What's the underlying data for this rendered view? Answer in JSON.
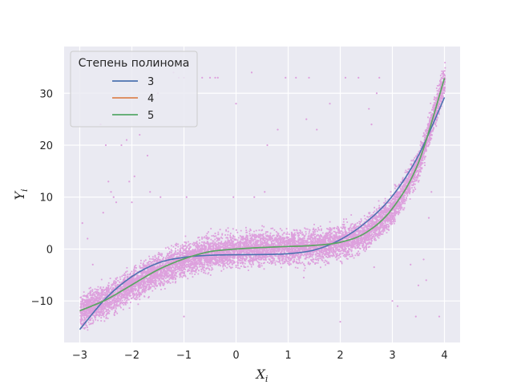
{
  "chart_data": {
    "type": "scatter",
    "title": "",
    "xlabel": "X",
    "xlabel_sub": "i",
    "ylabel": "Y",
    "ylabel_sub": "i",
    "xlim": [
      -3.3,
      4.3
    ],
    "ylim": [
      -18,
      39
    ],
    "xticks": [
      -3,
      -2,
      -1,
      0,
      1,
      2,
      3,
      4
    ],
    "yticks": [
      -10,
      0,
      10,
      20,
      30
    ],
    "grid": true,
    "background": "#eaeaf2",
    "scatter": {
      "color": "#dda0dd",
      "band_center_fit_degree": 5,
      "outliers": [
        [
          -2.95,
          5
        ],
        [
          -2.85,
          2
        ],
        [
          -2.75,
          -3
        ],
        [
          -2.6,
          24
        ],
        [
          -2.55,
          7
        ],
        [
          -2.5,
          20
        ],
        [
          -2.45,
          13
        ],
        [
          -2.4,
          11
        ],
        [
          -2.35,
          10
        ],
        [
          -2.3,
          9
        ],
        [
          -2.2,
          20
        ],
        [
          -2.1,
          21
        ],
        [
          -2.05,
          13
        ],
        [
          -2.0,
          9
        ],
        [
          -1.95,
          14
        ],
        [
          -1.85,
          22
        ],
        [
          -1.7,
          18
        ],
        [
          -1.65,
          11
        ],
        [
          -1.5,
          30
        ],
        [
          -1.45,
          10
        ],
        [
          -1.2,
          34
        ],
        [
          -1.1,
          33
        ],
        [
          -1.0,
          33
        ],
        [
          -0.95,
          10
        ],
        [
          -0.65,
          33
        ],
        [
          -0.5,
          33
        ],
        [
          -0.4,
          33
        ],
        [
          -0.35,
          33
        ],
        [
          -0.05,
          10
        ],
        [
          0.0,
          28
        ],
        [
          0.3,
          34
        ],
        [
          0.35,
          10
        ],
        [
          0.55,
          11
        ],
        [
          0.6,
          20
        ],
        [
          0.8,
          23
        ],
        [
          0.95,
          33
        ],
        [
          1.15,
          33
        ],
        [
          1.35,
          25
        ],
        [
          1.4,
          33
        ],
        [
          1.55,
          23
        ],
        [
          1.8,
          28
        ],
        [
          2.1,
          33
        ],
        [
          2.35,
          33
        ],
        [
          2.55,
          27
        ],
        [
          2.6,
          24
        ],
        [
          2.7,
          30
        ],
        [
          2.75,
          33
        ],
        [
          3.0,
          -10
        ],
        [
          3.1,
          -11
        ],
        [
          3.35,
          -3
        ],
        [
          3.45,
          -13
        ],
        [
          3.5,
          -7
        ],
        [
          3.6,
          -2
        ],
        [
          3.65,
          -6
        ],
        [
          3.7,
          6
        ],
        [
          3.75,
          11
        ],
        [
          3.9,
          -13
        ],
        [
          -1.0,
          -13
        ],
        [
          2.0,
          -14
        ],
        [
          2.65,
          -3.5
        ],
        [
          -0.4,
          3
        ],
        [
          1.3,
          -5.5
        ]
      ]
    },
    "legend": {
      "title": "Степень полинома",
      "position": "upper-left"
    },
    "series": [
      {
        "name": "3",
        "color": "#4c72b0",
        "x": [
          -3,
          -2.5,
          -2,
          -1.5,
          -1,
          -0.5,
          0,
          0.5,
          1,
          1.5,
          2,
          2.5,
          3,
          3.5,
          4
        ],
        "y": [
          -15.5,
          -9.5,
          -5.3,
          -2.7,
          -1.6,
          -1.2,
          -1.1,
          -1.05,
          -0.9,
          -0.2,
          1.8,
          5.2,
          10.2,
          18.0,
          29.2
        ]
      },
      {
        "name": "4",
        "color": "#dd8452",
        "x": [
          -3,
          -2.5,
          -2,
          -1.5,
          -1,
          -0.5,
          0,
          0.5,
          1,
          1.5,
          2,
          2.5,
          3,
          3.5,
          4
        ],
        "y": [
          -11.9,
          -9.8,
          -6.9,
          -4.0,
          -1.9,
          -0.5,
          0.0,
          0.3,
          0.5,
          0.7,
          1.3,
          3.2,
          7.8,
          16.6,
          32.9
        ]
      },
      {
        "name": "5",
        "color": "#55a868",
        "x": [
          -3,
          -2.5,
          -2,
          -1.5,
          -1,
          -0.5,
          0,
          0.5,
          1,
          1.5,
          2,
          2.5,
          3,
          3.5,
          4
        ],
        "y": [
          -11.9,
          -9.8,
          -6.9,
          -4.0,
          -1.9,
          -0.5,
          0.0,
          0.3,
          0.5,
          0.7,
          1.3,
          3.2,
          7.8,
          16.6,
          32.9
        ]
      }
    ]
  }
}
